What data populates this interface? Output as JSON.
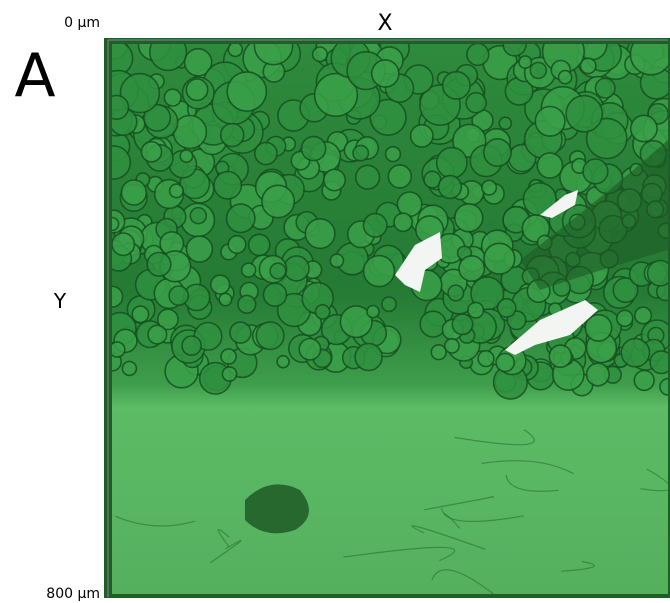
{
  "panel_label": "A",
  "axes": {
    "x_label": "X",
    "y_label": "Y",
    "origin_label": "0 µm",
    "end_label": "800 µm"
  }
}
